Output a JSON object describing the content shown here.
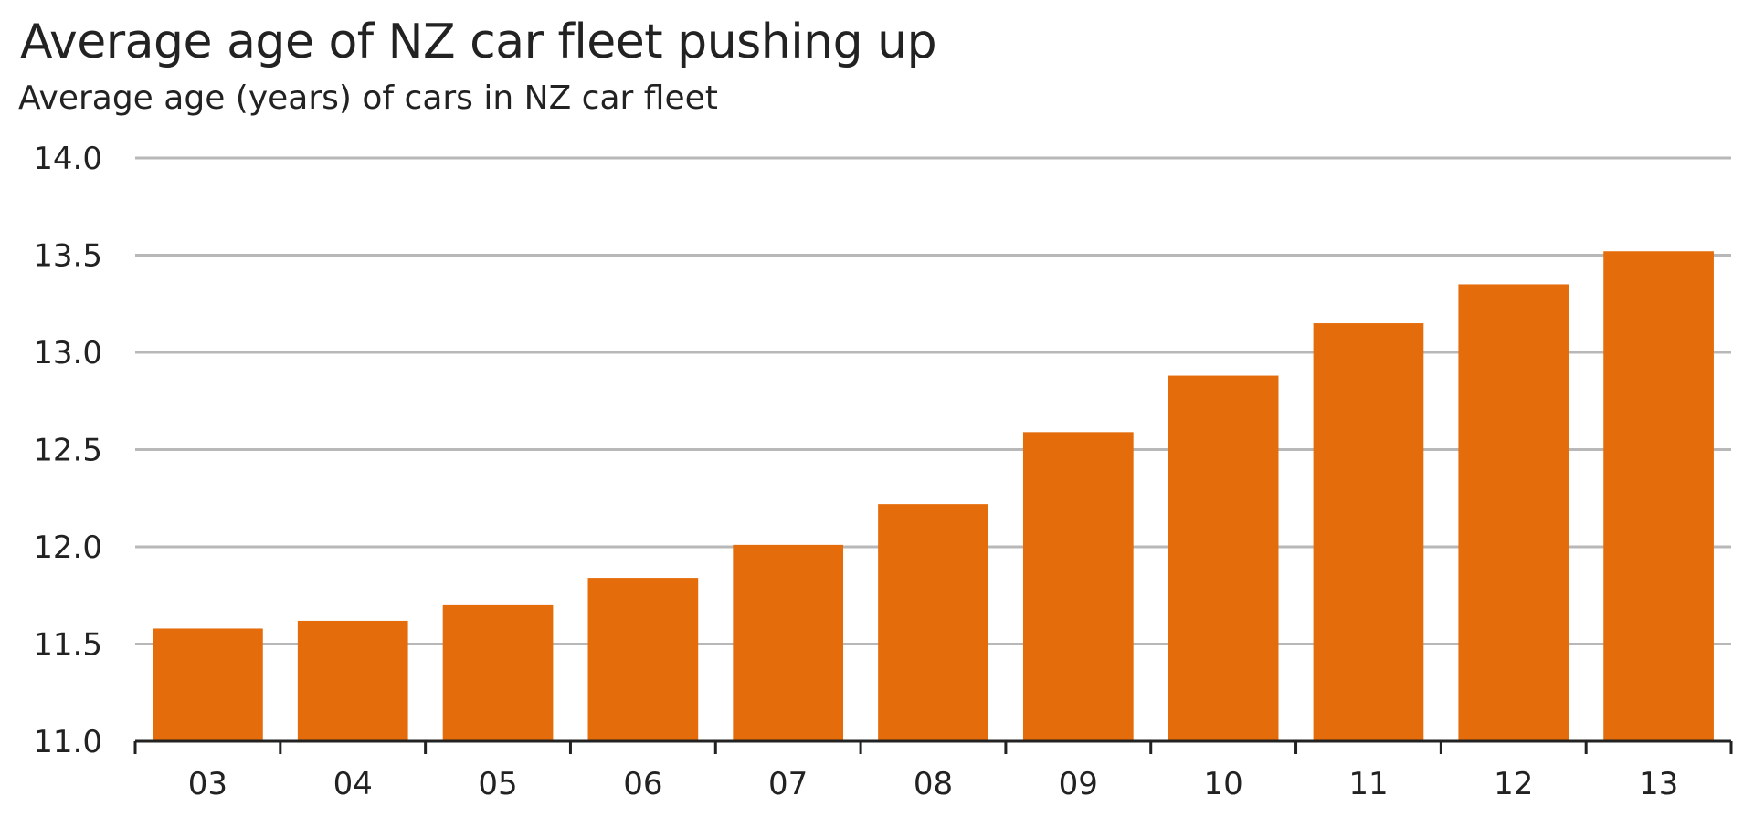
{
  "chart_data": {
    "type": "bar",
    "title": "Average age of NZ car fleet pushing up",
    "subtitle": "Average age (years) of cars in NZ car fleet",
    "xlabel": "",
    "ylabel": "",
    "categories": [
      "03",
      "04",
      "05",
      "06",
      "07",
      "08",
      "09",
      "10",
      "11",
      "12",
      "13"
    ],
    "values": [
      11.58,
      11.62,
      11.7,
      11.84,
      12.01,
      12.22,
      12.59,
      12.88,
      13.15,
      13.35,
      13.52
    ],
    "ylim": [
      11.0,
      14.0
    ],
    "yticks": [
      11.0,
      11.5,
      12.0,
      12.5,
      13.0,
      13.5,
      14.0
    ],
    "ytick_labels": [
      "11.0",
      "11.5",
      "12.0",
      "12.5",
      "13.0",
      "13.5",
      "14.0"
    ],
    "grid": true,
    "legend": "none",
    "bar_color": "#e46c0a",
    "grid_color": "#b8b8b8",
    "axis_color": "#222222"
  }
}
